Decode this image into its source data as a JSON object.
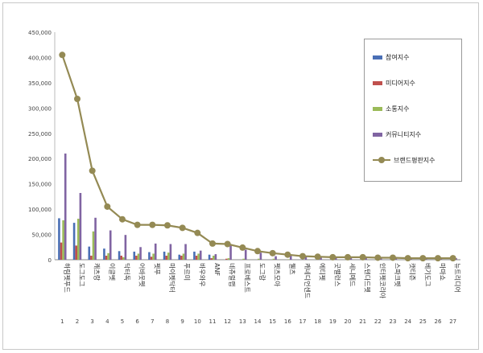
{
  "chart_data": {
    "type": "bar",
    "title": "",
    "xlabel": "",
    "ylabel": "",
    "ylim": [
      0,
      450000
    ],
    "yticks": [
      "0",
      "50,000",
      "100,000",
      "150,000",
      "200,000",
      "250,000",
      "300,000",
      "350,000",
      "400,000",
      "450,000"
    ],
    "grid": false,
    "legend_position": "top-right",
    "ranks": [
      "1",
      "2",
      "3",
      "4",
      "5",
      "6",
      "7",
      "8",
      "9",
      "10",
      "11",
      "12",
      "13",
      "14",
      "15",
      "16",
      "17",
      "18",
      "19",
      "20",
      "21",
      "22",
      "23",
      "24",
      "25",
      "26",
      "27"
    ],
    "categories": [
      "하림펫푸드",
      "도그도그",
      "캐츠랑",
      "이글벳",
      "닥터독",
      "어바웃펫",
      "펫푸",
      "마이펫닥터",
      "푸르미",
      "바우와우",
      "ANF",
      "네츄럴랩",
      "프로베스트",
      "도그랑",
      "펫츠모아",
      "웰츠",
      "캐네디언센드",
      "에티펫",
      "굿밸런스",
      "세니메드",
      "스텐다드펫",
      "인터펫코리아",
      "스파크펫",
      "캣티즌",
      "베기도그",
      "마마쇼",
      "뉴트리디어"
    ],
    "series": [
      {
        "name": "참여지수",
        "kind": "bar",
        "color": "#4a6fb5",
        "values": [
          82000,
          73000,
          26000,
          22000,
          17000,
          16000,
          15000,
          16000,
          10000,
          16000,
          10000,
          0,
          0,
          0,
          0,
          0,
          0,
          0,
          0,
          0,
          0,
          0,
          0,
          0,
          0,
          0,
          0
        ]
      },
      {
        "name": "미디어지수",
        "kind": "bar",
        "color": "#c0504d",
        "values": [
          34000,
          28000,
          8000,
          8000,
          8000,
          8000,
          6000,
          8000,
          8000,
          8000,
          3000,
          2000,
          0,
          0,
          0,
          0,
          0,
          0,
          0,
          0,
          0,
          0,
          0,
          0,
          0,
          0,
          0
        ]
      },
      {
        "name": "소통지수",
        "kind": "bar",
        "color": "#9bbb59",
        "values": [
          78000,
          81000,
          56000,
          13000,
          5000,
          12000,
          12000,
          14000,
          12000,
          12000,
          8000,
          3000,
          2000,
          2000,
          2000,
          1000,
          0,
          0,
          0,
          0,
          0,
          0,
          0,
          0,
          0,
          0,
          0
        ]
      },
      {
        "name": "커뮤니티지수",
        "kind": "bar",
        "color": "#8064a2",
        "values": [
          210000,
          132000,
          83000,
          58000,
          49000,
          25000,
          32000,
          31000,
          31000,
          18000,
          11000,
          28000,
          20000,
          14000,
          7000,
          9000,
          6000,
          5000,
          4000,
          4000,
          4000,
          4000,
          3000,
          3000,
          3000,
          3000,
          3000
        ]
      },
      {
        "name": "브랜드평판지수",
        "kind": "line",
        "color": "#948a54",
        "values": [
          405000,
          318000,
          176000,
          105000,
          80000,
          69000,
          69000,
          68000,
          63000,
          53000,
          32000,
          31000,
          24000,
          17000,
          13000,
          10000,
          7000,
          6000,
          5000,
          5000,
          5000,
          4000,
          4000,
          3000,
          3000,
          3000,
          3000
        ]
      }
    ]
  }
}
